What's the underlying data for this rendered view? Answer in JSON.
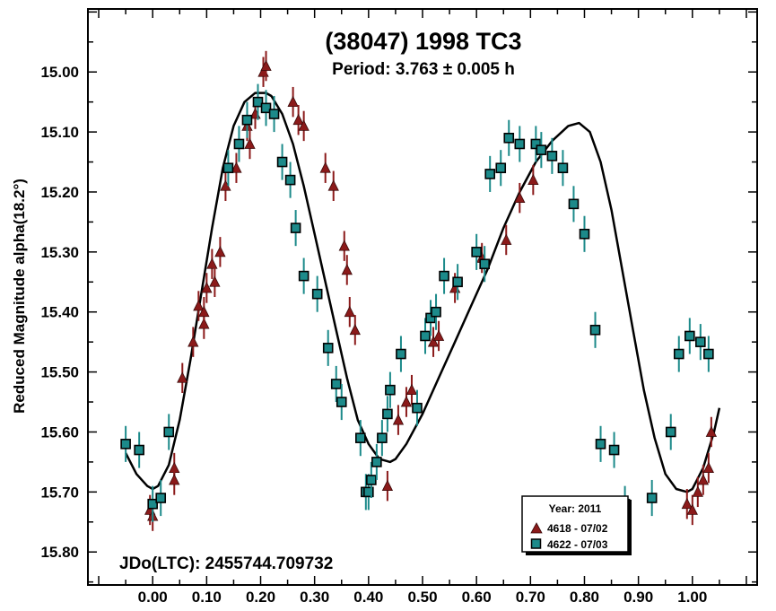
{
  "chart_data": {
    "type": "scatter",
    "title": "(38047) 1998 TC3",
    "subtitle": "Period: 3.763 ± 0.005 h",
    "ylabel": "Reduced Magnitude alpha(18.2°)",
    "xlabel": "",
    "annotation": "JDo(LTC): 2455744.709732",
    "xlim": [
      -0.12,
      1.12
    ],
    "ylim": [
      15.855,
      14.895
    ],
    "y_inverted": true,
    "x_ticks": [
      "0.00",
      "0.10",
      "0.20",
      "0.30",
      "0.40",
      "0.50",
      "0.60",
      "0.70",
      "0.80",
      "0.90",
      "1.00"
    ],
    "y_ticks": [
      "15.00",
      "15.10",
      "15.20",
      "15.30",
      "15.40",
      "15.50",
      "15.60",
      "15.70",
      "15.80"
    ],
    "legend": {
      "title": "Year: 2011",
      "position": "bottom-right",
      "entries": [
        "4618 - 07/02",
        "4622 - 07/03"
      ]
    },
    "colors": {
      "series1": "#8b1a1a",
      "series2": "#1c8a8a",
      "series2_edge": "#000000",
      "fit": "#000000"
    },
    "series": [
      {
        "name": "4618 - 07/02",
        "marker": "triangle",
        "error": 0.025,
        "x": [
          -0.005,
          0.0,
          0.04,
          0.04,
          0.055,
          0.075,
          0.085,
          0.095,
          0.095,
          0.1,
          0.11,
          0.115,
          0.125,
          0.135,
          0.155,
          0.175,
          0.18,
          0.19,
          0.195,
          0.205,
          0.21,
          0.26,
          0.27,
          0.28,
          0.32,
          0.335,
          0.355,
          0.36,
          0.365,
          0.375,
          0.435,
          0.455,
          0.47,
          0.48,
          0.52,
          0.53,
          0.56,
          0.61,
          0.655,
          0.68,
          0.705,
          0.99,
          1.0,
          1.01,
          1.02,
          1.03,
          1.035
        ],
        "y": [
          15.73,
          15.74,
          15.66,
          15.68,
          15.51,
          15.45,
          15.39,
          15.42,
          15.4,
          15.36,
          15.32,
          15.35,
          15.3,
          15.19,
          15.16,
          15.09,
          15.12,
          15.07,
          15.05,
          15.0,
          14.99,
          15.05,
          15.08,
          15.09,
          15.16,
          15.19,
          15.29,
          15.33,
          15.4,
          15.43,
          15.69,
          15.58,
          15.55,
          15.53,
          15.45,
          15.44,
          15.36,
          15.31,
          15.28,
          15.21,
          15.18,
          15.72,
          15.73,
          15.7,
          15.68,
          15.66,
          15.6
        ]
      },
      {
        "name": "4622 - 07/03",
        "marker": "square",
        "error": 0.03,
        "x": [
          -0.05,
          -0.025,
          0.0,
          0.015,
          0.03,
          0.14,
          0.16,
          0.175,
          0.195,
          0.21,
          0.225,
          0.24,
          0.255,
          0.265,
          0.28,
          0.305,
          0.325,
          0.34,
          0.35,
          0.385,
          0.395,
          0.4,
          0.405,
          0.415,
          0.425,
          0.435,
          0.44,
          0.46,
          0.49,
          0.505,
          0.515,
          0.525,
          0.54,
          0.565,
          0.6,
          0.615,
          0.625,
          0.645,
          0.66,
          0.68,
          0.71,
          0.72,
          0.74,
          0.76,
          0.78,
          0.8,
          0.82,
          0.83,
          0.855,
          0.875,
          0.925,
          0.96,
          0.975,
          0.995,
          1.015,
          1.03
        ],
        "y": [
          15.62,
          15.63,
          15.72,
          15.71,
          15.6,
          15.16,
          15.12,
          15.08,
          15.05,
          15.06,
          15.07,
          15.15,
          15.18,
          15.26,
          15.34,
          15.37,
          15.46,
          15.52,
          15.55,
          15.61,
          15.7,
          15.7,
          15.68,
          15.65,
          15.61,
          15.57,
          15.53,
          15.47,
          15.56,
          15.44,
          15.41,
          15.4,
          15.34,
          15.35,
          15.3,
          15.32,
          15.17,
          15.16,
          15.11,
          15.12,
          15.12,
          15.13,
          15.14,
          15.16,
          15.22,
          15.27,
          15.43,
          15.62,
          15.63,
          15.72,
          15.71,
          15.6,
          15.47,
          15.44,
          15.45,
          15.47
        ]
      }
    ],
    "fit_curve": {
      "name": "Fourier fit",
      "x": [
        -0.05,
        -0.03,
        -0.01,
        0.0,
        0.01,
        0.03,
        0.05,
        0.07,
        0.09,
        0.11,
        0.13,
        0.15,
        0.17,
        0.19,
        0.21,
        0.22,
        0.24,
        0.26,
        0.28,
        0.3,
        0.32,
        0.34,
        0.36,
        0.38,
        0.4,
        0.42,
        0.44,
        0.45,
        0.47,
        0.5,
        0.53,
        0.56,
        0.59,
        0.62,
        0.65,
        0.68,
        0.71,
        0.74,
        0.77,
        0.79,
        0.81,
        0.83,
        0.85,
        0.87,
        0.89,
        0.91,
        0.93,
        0.95,
        0.97,
        0.99,
        1.0,
        1.02,
        1.04,
        1.05
      ],
      "y": [
        15.635,
        15.67,
        15.69,
        15.695,
        15.69,
        15.655,
        15.58,
        15.48,
        15.37,
        15.26,
        15.16,
        15.09,
        15.05,
        15.035,
        15.035,
        15.04,
        15.07,
        15.12,
        15.19,
        15.27,
        15.35,
        15.43,
        15.51,
        15.58,
        15.62,
        15.645,
        15.65,
        15.645,
        15.62,
        15.57,
        15.51,
        15.45,
        15.39,
        15.33,
        15.26,
        15.2,
        15.15,
        15.115,
        15.09,
        15.085,
        15.1,
        15.15,
        15.23,
        15.33,
        15.43,
        15.53,
        15.61,
        15.67,
        15.695,
        15.7,
        15.695,
        15.66,
        15.6,
        15.56
      ]
    }
  }
}
